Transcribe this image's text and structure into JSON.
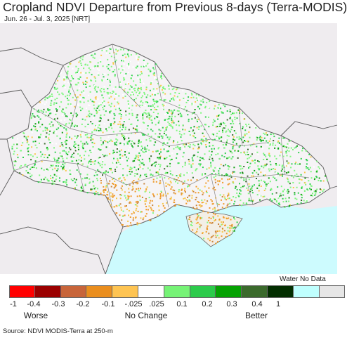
{
  "header": {
    "title": "Cropland NDVI Departure from Previous 8-days (Terra-MODIS)",
    "subtitle": "Jun. 26 - Jul. 3, 2025 [NRT]"
  },
  "map": {
    "sea_color": "#cdfbfe",
    "land_color": "#efecef",
    "cropland_palette": [
      "#7ff77f",
      "#30d050",
      "#10a010",
      "#3c6b2e",
      "#c9853c",
      "#ef9a2a",
      "#f7c84a",
      "#ffffff"
    ]
  },
  "legend": {
    "nodata_label": "Water No Data",
    "colors": [
      "#ff0000",
      "#9b0000",
      "#c8653a",
      "#ea8e1e",
      "#fec452",
      "#ffffff",
      "#76f376",
      "#2ccb4b",
      "#05a203",
      "#3b6a2c",
      "#032e00",
      "#bffffe",
      "#e6e6e6"
    ],
    "ticks": [
      "-1",
      "-0.4",
      "-0.3",
      "-0.2",
      "-0.1",
      "-.025",
      ".025",
      "0.1",
      "0.2",
      "0.3",
      "0.4",
      "1"
    ],
    "categories": [
      "Worse",
      "No Change",
      "Better"
    ]
  },
  "footer": {
    "source": "Source: NDVI MODIS-Terra at 250-m"
  }
}
